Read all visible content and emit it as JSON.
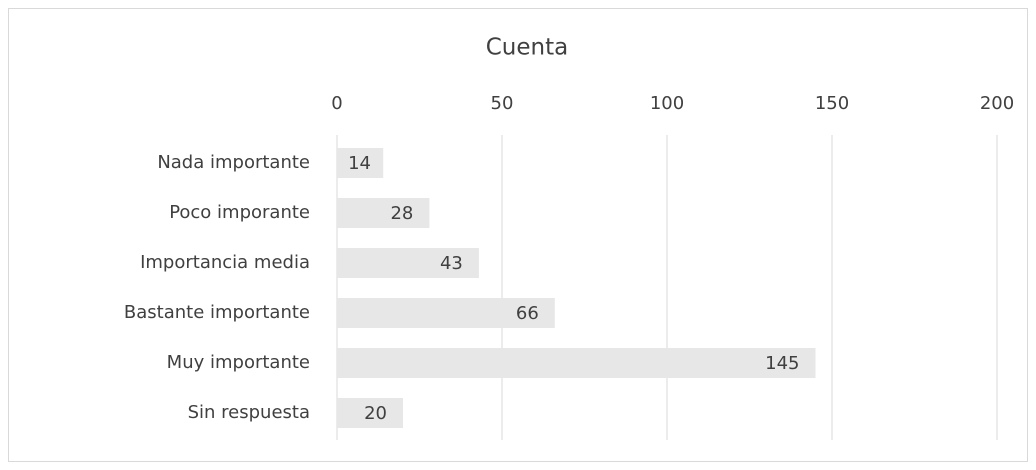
{
  "chart_data": {
    "type": "bar",
    "orientation": "horizontal",
    "title": "Cuenta",
    "categories": [
      "Nada importante",
      "Poco imporante",
      "Importancia media",
      "Bastante importante",
      "Muy importante",
      "Sin respuesta"
    ],
    "values": [
      14,
      28,
      43,
      66,
      145,
      20
    ],
    "color": "#e7e7e7",
    "xlim": [
      0,
      200
    ],
    "xticks": [
      0,
      50,
      100,
      150,
      200
    ],
    "grid": true
  }
}
